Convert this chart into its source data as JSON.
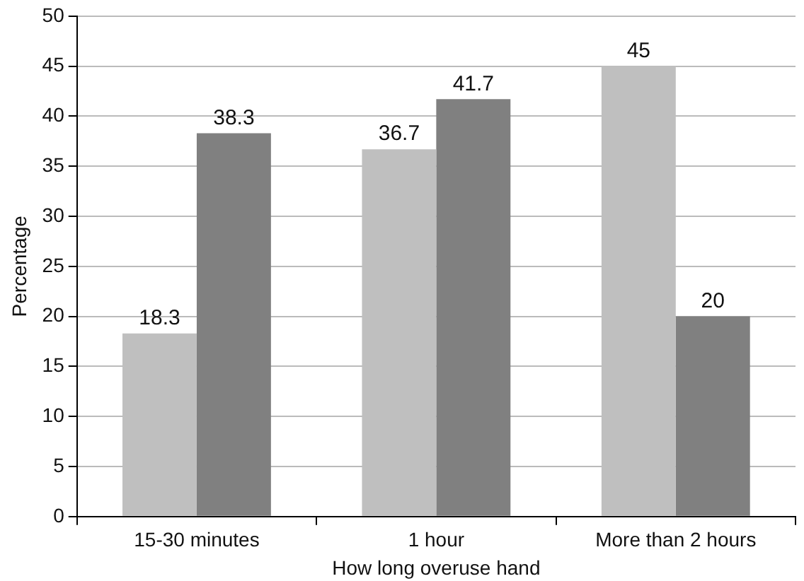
{
  "chart_data": {
    "type": "bar",
    "xlabel": "How long overuse hand",
    "ylabel": "Percentage",
    "categories": [
      "15-30 minutes",
      "1 hour",
      "More than 2 hours"
    ],
    "series": [
      {
        "color": "#bfbfbf",
        "values": [
          18.3,
          36.7,
          45
        ]
      },
      {
        "color": "#808080",
        "values": [
          38.3,
          41.7,
          20
        ]
      }
    ],
    "ylim": [
      0,
      50
    ],
    "yticks": [
      0,
      5,
      10,
      15,
      20,
      25,
      30,
      35,
      40,
      45,
      50
    ],
    "grid": "y",
    "legend": false,
    "data_labels": true
  }
}
